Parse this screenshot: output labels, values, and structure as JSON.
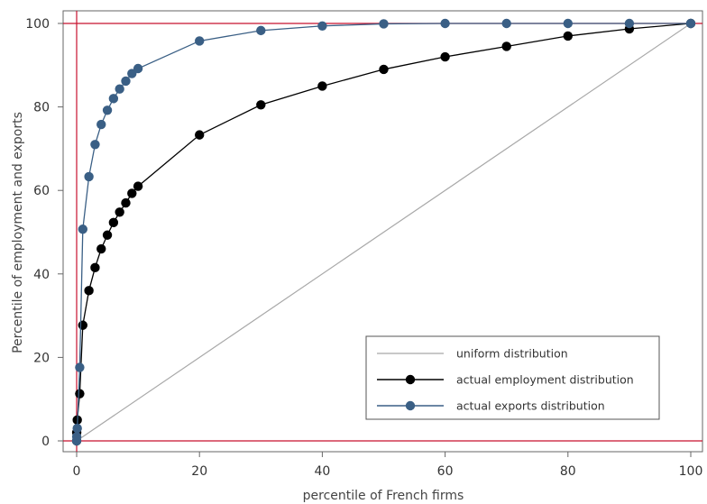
{
  "chart_data": {
    "type": "line",
    "title": "",
    "xlabel": "percentile of French firms",
    "ylabel": "Percentile of employment and exports",
    "xlim": [
      0,
      100
    ],
    "ylim": [
      0,
      100
    ],
    "xticks": [
      0,
      20,
      40,
      60,
      80,
      100
    ],
    "yticks": [
      0,
      20,
      40,
      60,
      80,
      100
    ],
    "grid": false,
    "reference_lines": {
      "x": 0,
      "y": [
        0,
        100
      ],
      "color": "#c8102e"
    },
    "legend": {
      "placement": "bottom-right"
    },
    "series": [
      {
        "name": "uniform distribution",
        "color": "#a8a8a8",
        "markers": false,
        "x": [
          0,
          100
        ],
        "y": [
          0,
          100
        ]
      },
      {
        "name": "actual employment distribution",
        "color": "#000000",
        "markers": true,
        "x": [
          0,
          0.01,
          0.1,
          0.5,
          1,
          2,
          3,
          4,
          5,
          6,
          7,
          8,
          9,
          10,
          20,
          30,
          40,
          50,
          60,
          70,
          80,
          90,
          100
        ],
        "y": [
          0,
          2,
          5,
          11.3,
          27.7,
          36,
          41.5,
          46,
          49.3,
          52.3,
          54.8,
          57,
          59.3,
          61,
          73.3,
          80.5,
          85,
          89,
          92,
          94.5,
          97,
          98.7,
          100
        ]
      },
      {
        "name": "actual exports distribution",
        "color": "#3a5f85",
        "markers": true,
        "x": [
          0,
          0.01,
          0.1,
          0.5,
          1,
          2,
          3,
          4,
          5,
          6,
          7,
          8,
          9,
          10,
          20,
          30,
          40,
          50,
          60,
          70,
          80,
          90,
          100
        ],
        "y": [
          0,
          1,
          3,
          17.6,
          50.7,
          63.3,
          71,
          75.8,
          79.2,
          82,
          84.3,
          86.2,
          88,
          89.2,
          95.8,
          98.3,
          99.4,
          99.9,
          100,
          100,
          100,
          100,
          100
        ]
      }
    ]
  }
}
